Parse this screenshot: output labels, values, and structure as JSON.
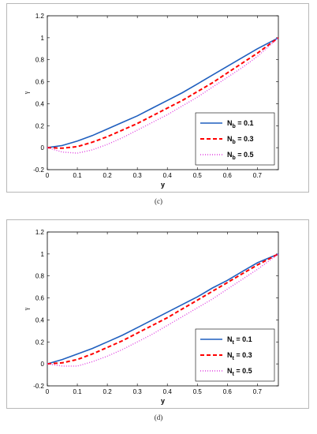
{
  "chart_data": [
    {
      "type": "line",
      "caption": "(c)",
      "xlabel": "y",
      "ylabel": "γ",
      "xlim": [
        0,
        0.77
      ],
      "ylim": [
        -0.2,
        1.2
      ],
      "xticks": [
        "0",
        "0.1",
        "0.2",
        "0.3",
        "0.4",
        "0.5",
        "0.6",
        "0.7"
      ],
      "yticks": [
        "-0.2",
        "0",
        "0.2",
        "0.4",
        "0.6",
        "0.8",
        "1",
        "1.2"
      ],
      "legend_position": "bottom-right",
      "grid": false,
      "x": [
        0,
        0.05,
        0.1,
        0.15,
        0.2,
        0.25,
        0.3,
        0.35,
        0.4,
        0.45,
        0.5,
        0.55,
        0.6,
        0.65,
        0.7,
        0.77
      ],
      "series": [
        {
          "name": "N_b = 0.1",
          "legend_main": "N",
          "legend_sub": "b",
          "legend_rest": " = 0.1",
          "color": "#1f5fbf",
          "dash": "solid",
          "values": [
            0,
            0.02,
            0.06,
            0.11,
            0.17,
            0.23,
            0.29,
            0.36,
            0.43,
            0.5,
            0.58,
            0.66,
            0.74,
            0.82,
            0.9,
            1.0
          ]
        },
        {
          "name": "N_b = 0.3",
          "legend_main": "N",
          "legend_sub": "b",
          "legend_rest": " = 0.3",
          "color": "#ff0000",
          "dash": "dashed",
          "values": [
            0,
            -0.005,
            0.01,
            0.05,
            0.1,
            0.16,
            0.22,
            0.29,
            0.36,
            0.43,
            0.51,
            0.59,
            0.68,
            0.77,
            0.86,
            1.0
          ]
        },
        {
          "name": "N_b = 0.5",
          "legend_main": "N",
          "legend_sub": "b",
          "legend_rest": " = 0.5",
          "color": "#e040e0",
          "dash": "dotted",
          "values": [
            0,
            -0.04,
            -0.05,
            -0.02,
            0.03,
            0.09,
            0.16,
            0.23,
            0.3,
            0.38,
            0.46,
            0.55,
            0.64,
            0.73,
            0.83,
            1.0
          ]
        }
      ]
    },
    {
      "type": "line",
      "caption": "(d)",
      "xlabel": "y",
      "ylabel": "γ",
      "xlim": [
        0,
        0.77
      ],
      "ylim": [
        -0.2,
        1.2
      ],
      "xticks": [
        "0",
        "0.1",
        "0.2",
        "0.3",
        "0.4",
        "0.5",
        "0.6",
        "0.7"
      ],
      "yticks": [
        "-0.2",
        "0",
        "0.2",
        "0.4",
        "0.6",
        "0.8",
        "1",
        "1.2"
      ],
      "legend_position": "bottom-right",
      "grid": false,
      "x": [
        0,
        0.05,
        0.1,
        0.15,
        0.2,
        0.25,
        0.3,
        0.35,
        0.4,
        0.45,
        0.5,
        0.55,
        0.6,
        0.65,
        0.7,
        0.77
      ],
      "series": [
        {
          "name": "N_t = 0.1",
          "legend_main": "N",
          "legend_sub": "t",
          "legend_rest": " = 0.1",
          "color": "#1f5fbf",
          "dash": "solid",
          "values": [
            0,
            0.04,
            0.09,
            0.14,
            0.2,
            0.26,
            0.33,
            0.4,
            0.47,
            0.54,
            0.61,
            0.69,
            0.76,
            0.84,
            0.92,
            1.0
          ]
        },
        {
          "name": "N_t = 0.3",
          "legend_main": "N",
          "legend_sub": "t",
          "legend_rest": " = 0.3",
          "color": "#ff0000",
          "dash": "dashed",
          "values": [
            0,
            0.01,
            0.04,
            0.09,
            0.15,
            0.21,
            0.28,
            0.35,
            0.42,
            0.5,
            0.58,
            0.66,
            0.74,
            0.82,
            0.9,
            1.0
          ]
        },
        {
          "name": "N_t = 0.5",
          "legend_main": "N",
          "legend_sub": "t",
          "legend_rest": " = 0.5",
          "color": "#e040e0",
          "dash": "dotted",
          "values": [
            0,
            -0.02,
            -0.02,
            0.02,
            0.07,
            0.13,
            0.2,
            0.27,
            0.35,
            0.43,
            0.51,
            0.59,
            0.68,
            0.77,
            0.86,
            1.0
          ]
        }
      ]
    }
  ]
}
